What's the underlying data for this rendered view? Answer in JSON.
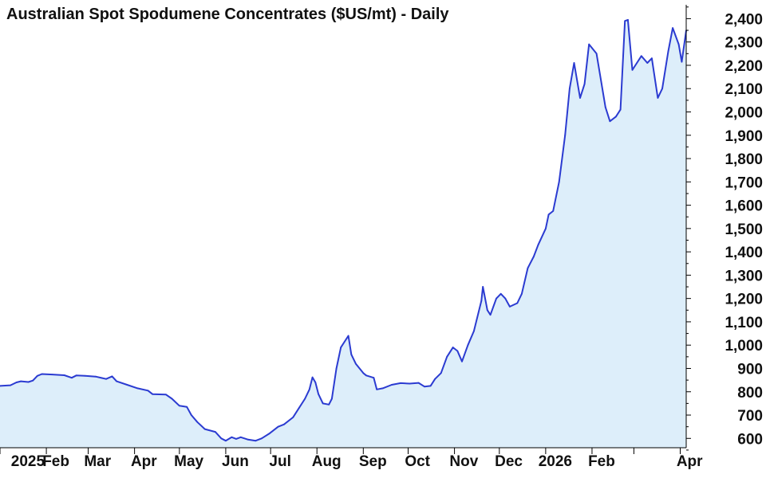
{
  "chart_data": {
    "type": "area",
    "title": "Australian Spot Spodumene Concentrates ($US/mt) - Daily",
    "xlabel": "",
    "ylabel": "",
    "ylim": [
      560,
      2480
    ],
    "y_axis_position": "right",
    "grid": false,
    "legend": "none",
    "x_range": [
      "2025-01-01",
      "2026-04-05"
    ],
    "y_ticks": [
      600,
      700,
      800,
      900,
      1000,
      1100,
      1200,
      1300,
      1400,
      1500,
      1600,
      1700,
      1800,
      1900,
      2000,
      2100,
      2200,
      2300,
      2400
    ],
    "y_tick_labels": [
      "600",
      "700",
      "800",
      "900",
      "1,000",
      "1,100",
      "1,200",
      "1,300",
      "1,400",
      "1,500",
      "1,600",
      "1,700",
      "1,800",
      "1,900",
      "2,000",
      "2,100",
      "2,200",
      "2,300",
      "2,400"
    ],
    "x_ticks": [
      {
        "date": "2025-01-01",
        "label": "2025"
      },
      {
        "date": "2025-02-01",
        "label": "Feb"
      },
      {
        "date": "2025-03-01",
        "label": "Mar"
      },
      {
        "date": "2025-04-01",
        "label": "Apr"
      },
      {
        "date": "2025-05-01",
        "label": "May"
      },
      {
        "date": "2025-06-01",
        "label": "Jun"
      },
      {
        "date": "2025-07-01",
        "label": "Jul"
      },
      {
        "date": "2025-08-01",
        "label": "Aug"
      },
      {
        "date": "2025-09-01",
        "label": "Sep"
      },
      {
        "date": "2025-10-01",
        "label": "Oct"
      },
      {
        "date": "2025-11-01",
        "label": "Nov"
      },
      {
        "date": "2025-12-01",
        "label": "Dec"
      },
      {
        "date": "2026-01-01",
        "label": "2026"
      },
      {
        "date": "2026-02-01",
        "label": "Feb"
      },
      {
        "date": "2026-03-01",
        "label": ""
      },
      {
        "date": "2026-04-01",
        "label": "Apr"
      }
    ],
    "colors": {
      "line": "#2b3bd1",
      "fill": "#ddeefa",
      "axis": "#000000",
      "text": "#111111"
    },
    "series": [
      {
        "points": [
          [
            "2025-01-01",
            825
          ],
          [
            "2025-01-08",
            828
          ],
          [
            "2025-01-12",
            840
          ],
          [
            "2025-01-15",
            845
          ],
          [
            "2025-01-20",
            842
          ],
          [
            "2025-01-23",
            848
          ],
          [
            "2025-01-26",
            868
          ],
          [
            "2025-01-29",
            876
          ],
          [
            "2025-02-05",
            874
          ],
          [
            "2025-02-13",
            871
          ],
          [
            "2025-02-18",
            860
          ],
          [
            "2025-02-21",
            870
          ],
          [
            "2025-02-27",
            868
          ],
          [
            "2025-03-06",
            865
          ],
          [
            "2025-03-13",
            855
          ],
          [
            "2025-03-17",
            866
          ],
          [
            "2025-03-20",
            845
          ],
          [
            "2025-03-27",
            830
          ],
          [
            "2025-04-03",
            815
          ],
          [
            "2025-04-10",
            805
          ],
          [
            "2025-04-13",
            790
          ],
          [
            "2025-04-22",
            788
          ],
          [
            "2025-04-26",
            770
          ],
          [
            "2025-05-01",
            740
          ],
          [
            "2025-05-06",
            735
          ],
          [
            "2025-05-09",
            700
          ],
          [
            "2025-05-13",
            670
          ],
          [
            "2025-05-18",
            640
          ],
          [
            "2025-05-25",
            628
          ],
          [
            "2025-05-29",
            600
          ],
          [
            "2025-06-01",
            590
          ],
          [
            "2025-06-05",
            605
          ],
          [
            "2025-06-08",
            598
          ],
          [
            "2025-06-11",
            605
          ],
          [
            "2025-06-16",
            595
          ],
          [
            "2025-06-21",
            590
          ],
          [
            "2025-06-25",
            600
          ],
          [
            "2025-06-30",
            620
          ],
          [
            "2025-07-06",
            650
          ],
          [
            "2025-07-10",
            660
          ],
          [
            "2025-07-16",
            690
          ],
          [
            "2025-07-20",
            730
          ],
          [
            "2025-07-24",
            770
          ],
          [
            "2025-07-27",
            810
          ],
          [
            "2025-07-29",
            862
          ],
          [
            "2025-07-31",
            840
          ],
          [
            "2025-08-02",
            790
          ],
          [
            "2025-08-05",
            750
          ],
          [
            "2025-08-09",
            745
          ],
          [
            "2025-08-11",
            770
          ],
          [
            "2025-08-14",
            900
          ],
          [
            "2025-08-17",
            990
          ],
          [
            "2025-08-22",
            1040
          ],
          [
            "2025-08-24",
            960
          ],
          [
            "2025-08-27",
            920
          ],
          [
            "2025-09-01",
            880
          ],
          [
            "2025-09-03",
            870
          ],
          [
            "2025-09-08",
            860
          ],
          [
            "2025-09-10",
            810
          ],
          [
            "2025-09-14",
            815
          ],
          [
            "2025-09-20",
            830
          ],
          [
            "2025-09-26",
            837
          ],
          [
            "2025-10-02",
            835
          ],
          [
            "2025-10-08",
            838
          ],
          [
            "2025-10-12",
            822
          ],
          [
            "2025-10-16",
            825
          ],
          [
            "2025-10-19",
            855
          ],
          [
            "2025-10-23",
            880
          ],
          [
            "2025-10-27",
            950
          ],
          [
            "2025-10-31",
            990
          ],
          [
            "2025-11-03",
            975
          ],
          [
            "2025-11-06",
            930
          ],
          [
            "2025-11-10",
            1000
          ],
          [
            "2025-11-14",
            1060
          ],
          [
            "2025-11-19",
            1190
          ],
          [
            "2025-11-20",
            1250
          ],
          [
            "2025-11-23",
            1150
          ],
          [
            "2025-11-25",
            1130
          ],
          [
            "2025-11-29",
            1200
          ],
          [
            "2025-12-02",
            1220
          ],
          [
            "2025-12-05",
            1200
          ],
          [
            "2025-12-08",
            1165
          ],
          [
            "2025-12-13",
            1180
          ],
          [
            "2025-12-16",
            1220
          ],
          [
            "2025-12-20",
            1330
          ],
          [
            "2025-12-24",
            1380
          ],
          [
            "2025-12-27",
            1430
          ],
          [
            "2026-01-01",
            1500
          ],
          [
            "2026-01-03",
            1560
          ],
          [
            "2026-01-06",
            1575
          ],
          [
            "2026-01-10",
            1700
          ],
          [
            "2026-01-14",
            1900
          ],
          [
            "2026-01-17",
            2100
          ],
          [
            "2026-01-20",
            2210
          ],
          [
            "2026-01-24",
            2060
          ],
          [
            "2026-01-27",
            2120
          ],
          [
            "2026-01-30",
            2290
          ],
          [
            "2026-02-04",
            2250
          ],
          [
            "2026-02-10",
            2020
          ],
          [
            "2026-02-13",
            1960
          ],
          [
            "2026-02-17",
            1980
          ],
          [
            "2026-02-20",
            2010
          ],
          [
            "2026-02-23",
            2390
          ],
          [
            "2026-02-25",
            2395
          ],
          [
            "2026-02-28",
            2180
          ],
          [
            "2026-03-03",
            2210
          ],
          [
            "2026-03-06",
            2240
          ],
          [
            "2026-03-10",
            2210
          ],
          [
            "2026-03-13",
            2230
          ],
          [
            "2026-03-17",
            2060
          ],
          [
            "2026-03-20",
            2100
          ],
          [
            "2026-03-24",
            2260
          ],
          [
            "2026-03-27",
            2360
          ],
          [
            "2026-03-31",
            2290
          ],
          [
            "2026-04-02",
            2215
          ],
          [
            "2026-04-05",
            2350
          ]
        ]
      }
    ]
  }
}
